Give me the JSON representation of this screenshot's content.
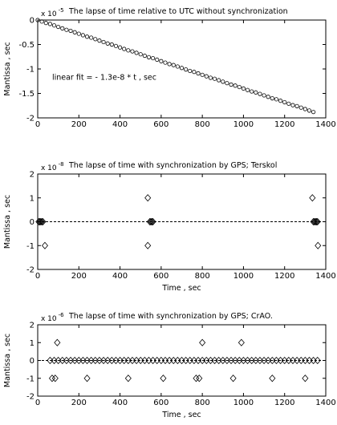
{
  "chart_data": [
    {
      "type": "scatter",
      "title": "The lapse of time relative to UTC without synchronization",
      "multiplier": "x 10",
      "multiplier_exp": "-5",
      "ylabel": "Mantissa , sec",
      "annotation": "linear fit = - 1.3e-8 * t ,  sec",
      "marker": "circle",
      "color": "#000000",
      "zero_line": false,
      "xlim": [
        0,
        1400
      ],
      "xticks": [
        0,
        200,
        400,
        600,
        800,
        1000,
        1200,
        1400
      ],
      "ylim": [
        -2,
        0
      ],
      "yticks": [
        -2,
        -1.5,
        -1,
        -0.5,
        0
      ],
      "x": [
        0,
        20,
        40,
        60,
        80,
        100,
        120,
        140,
        160,
        180,
        200,
        220,
        240,
        260,
        280,
        300,
        320,
        340,
        360,
        380,
        400,
        420,
        440,
        460,
        480,
        500,
        520,
        540,
        560,
        580,
        600,
        620,
        640,
        660,
        680,
        700,
        720,
        740,
        760,
        780,
        800,
        820,
        840,
        860,
        880,
        900,
        920,
        940,
        960,
        980,
        1000,
        1020,
        1040,
        1060,
        1080,
        1100,
        1120,
        1140,
        1160,
        1180,
        1200,
        1220,
        1240,
        1260,
        1280,
        1300,
        1320,
        1340
      ],
      "values": [
        0,
        -0.03,
        -0.06,
        -0.08,
        -0.11,
        -0.14,
        -0.17,
        -0.2,
        -0.22,
        -0.25,
        -0.28,
        -0.31,
        -0.34,
        -0.36,
        -0.39,
        -0.42,
        -0.45,
        -0.48,
        -0.5,
        -0.53,
        -0.56,
        -0.59,
        -0.62,
        -0.64,
        -0.67,
        -0.7,
        -0.73,
        -0.76,
        -0.78,
        -0.81,
        -0.84,
        -0.87,
        -0.9,
        -0.92,
        -0.95,
        -0.98,
        -1.01,
        -1.04,
        -1.06,
        -1.09,
        -1.12,
        -1.15,
        -1.18,
        -1.2,
        -1.23,
        -1.26,
        -1.29,
        -1.32,
        -1.34,
        -1.37,
        -1.4,
        -1.43,
        -1.46,
        -1.48,
        -1.51,
        -1.54,
        -1.57,
        -1.6,
        -1.62,
        -1.65,
        -1.68,
        -1.71,
        -1.74,
        -1.76,
        -1.79,
        -1.82,
        -1.85,
        -1.88
      ]
    },
    {
      "type": "scatter",
      "title": "The lapse of time with synchronization by GPS;  Terskol",
      "multiplier": "x 10",
      "multiplier_exp": "-8",
      "ylabel": "Mantissa ,  sec",
      "xlabel": "Time ,  sec",
      "marker": "diamond",
      "color": "#000000",
      "zero_line": true,
      "xlim": [
        0,
        1400
      ],
      "xticks": [
        0,
        200,
        400,
        600,
        800,
        1000,
        1200,
        1400
      ],
      "ylim": [
        -2,
        2
      ],
      "yticks": [
        -2,
        -1,
        0,
        1,
        2
      ],
      "x": [
        5,
        10,
        15,
        20,
        25,
        35,
        535,
        535,
        545,
        550,
        555,
        560,
        1335,
        1340,
        1345,
        1350,
        1355,
        1360,
        1362
      ],
      "values": [
        0,
        0,
        0,
        0,
        0,
        -1,
        1,
        -1,
        0,
        0,
        0,
        0,
        1,
        0,
        0,
        0,
        0,
        0,
        -1
      ]
    },
    {
      "type": "scatter",
      "title": "The lapse of time with synchronization by GPS;  CrAO.",
      "multiplier": "x 10",
      "multiplier_exp": "-6",
      "ylabel": "Mantissa , sec",
      "xlabel": "Time , sec",
      "marker": "diamond",
      "color": "#000000",
      "zero_line": true,
      "xlim": [
        0,
        1400
      ],
      "xticks": [
        0,
        200,
        400,
        600,
        800,
        1000,
        1200,
        1400
      ],
      "ylim": [
        -2,
        2
      ],
      "yticks": [
        -2,
        -1,
        0,
        1,
        2
      ],
      "x": [
        60,
        80,
        100,
        120,
        140,
        160,
        180,
        200,
        220,
        240,
        260,
        280,
        300,
        320,
        340,
        360,
        380,
        400,
        420,
        440,
        460,
        480,
        500,
        520,
        540,
        560,
        580,
        600,
        620,
        640,
        660,
        680,
        700,
        720,
        740,
        760,
        780,
        800,
        820,
        840,
        860,
        880,
        900,
        920,
        940,
        960,
        980,
        1000,
        1020,
        1040,
        1060,
        1080,
        1100,
        1120,
        1140,
        1160,
        1180,
        1200,
        1220,
        1240,
        1260,
        1280,
        1300,
        1320,
        1340,
        1360,
        95,
        800,
        990,
        70,
        85,
        240,
        440,
        610,
        770,
        785,
        950,
        1140,
        1300
      ],
      "values": [
        0,
        0,
        0,
        0,
        0,
        0,
        0,
        0,
        0,
        0,
        0,
        0,
        0,
        0,
        0,
        0,
        0,
        0,
        0,
        0,
        0,
        0,
        0,
        0,
        0,
        0,
        0,
        0,
        0,
        0,
        0,
        0,
        0,
        0,
        0,
        0,
        0,
        0,
        0,
        0,
        0,
        0,
        0,
        0,
        0,
        0,
        0,
        0,
        0,
        0,
        0,
        0,
        0,
        0,
        0,
        0,
        0,
        0,
        0,
        0,
        0,
        0,
        0,
        0,
        0,
        0,
        1,
        1,
        1,
        -1,
        -1,
        -1,
        -1,
        -1,
        -1,
        -1,
        -1,
        -1,
        -1
      ]
    }
  ]
}
